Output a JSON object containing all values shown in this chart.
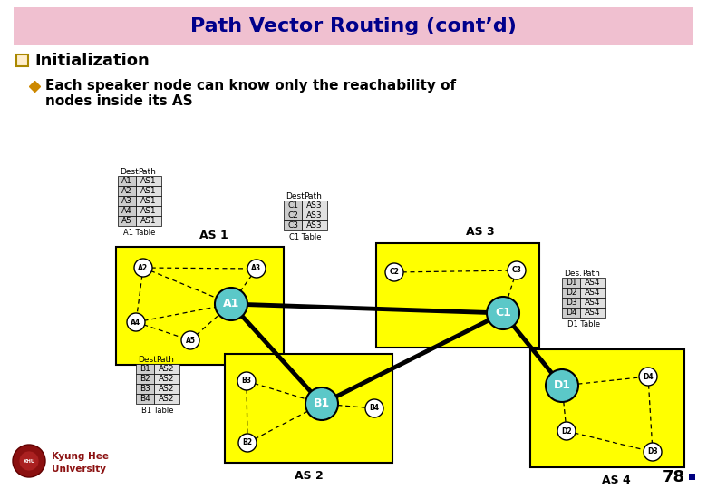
{
  "title": "Path Vector Routing (cont’d)",
  "title_bg": "#f0c0d0",
  "title_color": "#00008B",
  "slide_bg": "#ffffff",
  "bullet1": "Initialization",
  "bullet_color": "#CC8800",
  "as_fill": "#FFFF00",
  "as_edge": "#000000",
  "speaker_fill": "#5BC8C8",
  "page_num": "78",
  "a1_table_rows": [
    [
      "A1",
      "AS1"
    ],
    [
      "A2",
      "AS1"
    ],
    [
      "A3",
      "AS1"
    ],
    [
      "A4",
      "AS1"
    ],
    [
      "A5",
      "AS1"
    ]
  ],
  "a1_table_label": "A1 Table",
  "a1_table_hdr": [
    "Dest.",
    "Path"
  ],
  "c1_table_rows": [
    [
      "C1",
      "AS3"
    ],
    [
      "C2",
      "AS3"
    ],
    [
      "C3",
      "AS3"
    ]
  ],
  "c1_table_label": "C1 Table",
  "c1_table_hdr": [
    "Dest.",
    "Path"
  ],
  "b1_table_rows": [
    [
      "B1",
      "AS2"
    ],
    [
      "B2",
      "AS2"
    ],
    [
      "B3",
      "AS2"
    ],
    [
      "B4",
      "AS2"
    ]
  ],
  "b1_table_label": "B1 Table",
  "b1_table_hdr": [
    "Dest.",
    "Path"
  ],
  "d1_table_rows": [
    [
      "D1",
      "AS4"
    ],
    [
      "D2",
      "AS4"
    ],
    [
      "D3",
      "AS4"
    ],
    [
      "D4",
      "AS4"
    ]
  ],
  "d1_table_label": "D1 Table",
  "d1_table_hdr": [
    "Des.",
    "Path"
  ]
}
